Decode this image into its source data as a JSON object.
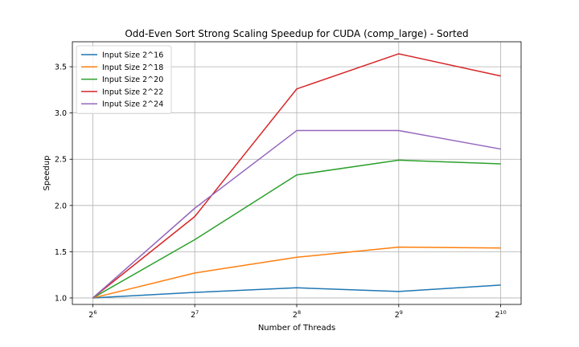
{
  "chart_data": {
    "type": "line",
    "title": "Odd-Even Sort Strong Scaling Speedup for CUDA (comp_large) - Sorted",
    "xlabel": "Number of Threads",
    "ylabel": "Speedup",
    "x_scale": "log2",
    "x": [
      64,
      128,
      256,
      512,
      1024
    ],
    "x_tick_labels": [
      {
        "base": "2",
        "exp": "6"
      },
      {
        "base": "2",
        "exp": "7"
      },
      {
        "base": "2",
        "exp": "8"
      },
      {
        "base": "2",
        "exp": "9"
      },
      {
        "base": "2",
        "exp": "10"
      }
    ],
    "y_ticks": [
      "1.0",
      "1.5",
      "2.0",
      "2.5",
      "3.0",
      "3.5"
    ],
    "ylim": [
      0.93,
      3.77
    ],
    "grid": true,
    "legend_position": "top-left",
    "series": [
      {
        "name": "Input Size 2^16",
        "color": "#1f77b4",
        "values": [
          1.0,
          1.06,
          1.11,
          1.07,
          1.14
        ]
      },
      {
        "name": "Input Size 2^18",
        "color": "#ff7f0e",
        "values": [
          1.0,
          1.27,
          1.44,
          1.55,
          1.54
        ]
      },
      {
        "name": "Input Size 2^20",
        "color": "#2ca02c",
        "values": [
          1.0,
          1.63,
          2.33,
          2.49,
          2.45
        ]
      },
      {
        "name": "Input Size 2^22",
        "color": "#d62728",
        "values": [
          1.0,
          1.88,
          3.26,
          3.64,
          3.4
        ]
      },
      {
        "name": "Input Size 2^24",
        "color": "#9467bd",
        "values": [
          1.0,
          1.97,
          2.81,
          2.81,
          2.61
        ]
      }
    ]
  }
}
